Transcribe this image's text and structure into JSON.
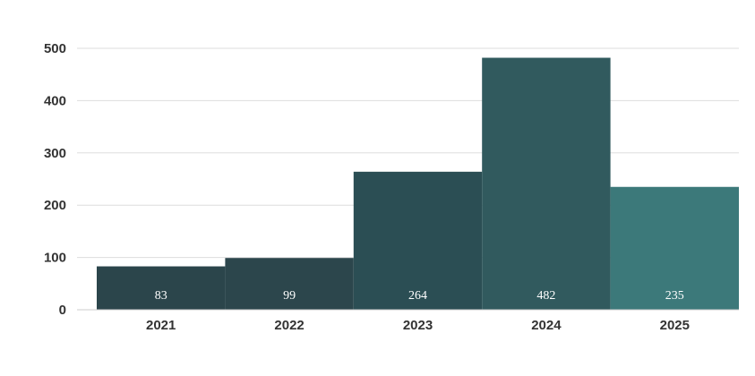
{
  "chart_data": {
    "type": "bar",
    "title": "",
    "xlabel": "",
    "ylabel": "",
    "categories": [
      "2021",
      "2022",
      "2023",
      "2024",
      "2025"
    ],
    "values": [
      83,
      99,
      264,
      482,
      235
    ],
    "data_labels": [
      "83",
      "99",
      "264",
      "482",
      "235"
    ],
    "ylim": [
      0,
      500
    ],
    "yticks": [
      0,
      100,
      200,
      300,
      400,
      500
    ],
    "grid": true,
    "legend": "none",
    "colors": [
      "#2b454b",
      "#2c464c",
      "#2b4e54",
      "#315a5e",
      "#3c797a"
    ]
  }
}
